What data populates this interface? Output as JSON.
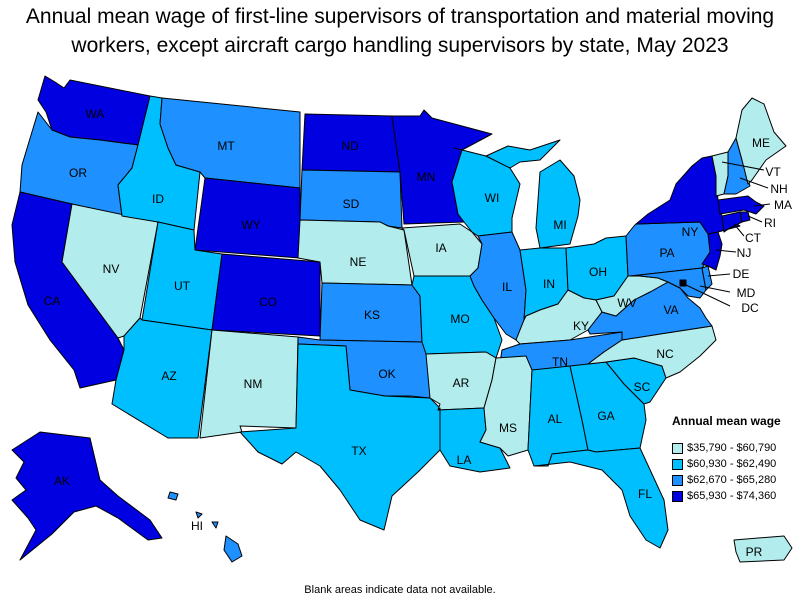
{
  "title": "Annual mean wage of first-line supervisors of transportation and material moving workers, except aircraft cargo handling supervisors by state, May 2023",
  "footnote": "Blank areas indicate data not available.",
  "legend": {
    "title": "Annual mean wage",
    "items": [
      {
        "label": "$35,790 - $60,790",
        "color": "#b2ecec"
      },
      {
        "label": "$60,930 - $62,490",
        "color": "#00bfff"
      },
      {
        "label": "$62,670 - $65,280",
        "color": "#1e90ff"
      },
      {
        "label": "$65,930 - $74,360",
        "color": "#0000e0"
      }
    ]
  },
  "states": {
    "WA": {
      "label": "WA",
      "tier": 3
    },
    "OR": {
      "label": "OR",
      "tier": 2
    },
    "CA": {
      "label": "CA",
      "tier": 3
    },
    "NV": {
      "label": "NV",
      "tier": 0
    },
    "ID": {
      "label": "ID",
      "tier": 1
    },
    "MT": {
      "label": "MT",
      "tier": 2
    },
    "WY": {
      "label": "WY",
      "tier": 3
    },
    "UT": {
      "label": "UT",
      "tier": 1
    },
    "CO": {
      "label": "CO",
      "tier": 3
    },
    "AZ": {
      "label": "AZ",
      "tier": 1
    },
    "NM": {
      "label": "NM",
      "tier": 0
    },
    "ND": {
      "label": "ND",
      "tier": 3
    },
    "SD": {
      "label": "SD",
      "tier": 2
    },
    "NE": {
      "label": "NE",
      "tier": 0
    },
    "KS": {
      "label": "KS",
      "tier": 2
    },
    "OK": {
      "label": "OK",
      "tier": 2
    },
    "TX": {
      "label": "TX",
      "tier": 1
    },
    "MN": {
      "label": "MN",
      "tier": 3
    },
    "IA": {
      "label": "IA",
      "tier": 0
    },
    "MO": {
      "label": "MO",
      "tier": 1
    },
    "AR": {
      "label": "AR",
      "tier": 0
    },
    "LA": {
      "label": "LA",
      "tier": 1
    },
    "WI": {
      "label": "WI",
      "tier": 1
    },
    "IL": {
      "label": "IL",
      "tier": 2
    },
    "MI": {
      "label": "MI",
      "tier": 1
    },
    "IN": {
      "label": "IN",
      "tier": 1
    },
    "OH": {
      "label": "OH",
      "tier": 1
    },
    "KY": {
      "label": "KY",
      "tier": 0
    },
    "TN": {
      "label": "TN",
      "tier": 2
    },
    "MS": {
      "label": "MS",
      "tier": 0
    },
    "AL": {
      "label": "AL",
      "tier": 1
    },
    "GA": {
      "label": "GA",
      "tier": 1
    },
    "FL": {
      "label": "FL",
      "tier": 1
    },
    "SC": {
      "label": "SC",
      "tier": 1
    },
    "NC": {
      "label": "NC",
      "tier": 0
    },
    "VA": {
      "label": "VA",
      "tier": 2
    },
    "WV": {
      "label": "WV",
      "tier": 0
    },
    "PA": {
      "label": "PA",
      "tier": 2
    },
    "NY": {
      "label": "NY",
      "tier": 3
    },
    "ME": {
      "label": "ME",
      "tier": 0
    },
    "VT": {
      "label": "VT",
      "tier": 0
    },
    "NH": {
      "label": "NH",
      "tier": 2
    },
    "MA": {
      "label": "MA",
      "tier": 3
    },
    "RI": {
      "label": "RI",
      "tier": 3
    },
    "CT": {
      "label": "CT",
      "tier": 3
    },
    "NJ": {
      "label": "NJ",
      "tier": 3
    },
    "DE": {
      "label": "DE",
      "tier": 2
    },
    "MD": {
      "label": "MD",
      "tier": 2
    },
    "DC": {
      "label": "DC",
      "tier": 3
    },
    "AK": {
      "label": "AK",
      "tier": 3
    },
    "HI": {
      "label": "HI",
      "tier": 2
    },
    "PR": {
      "label": "PR",
      "tier": 0
    }
  }
}
